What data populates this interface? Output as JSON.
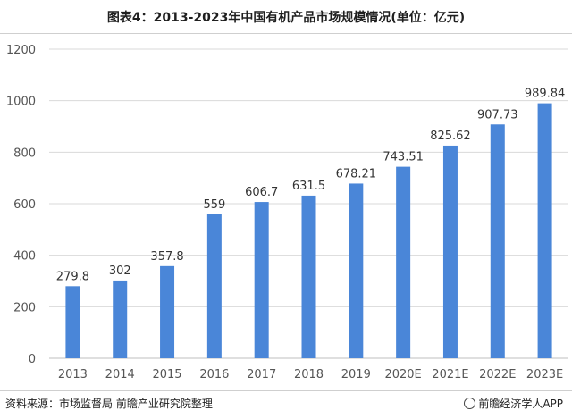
{
  "header": {
    "title": "图表4：2013-2023年中国有机产品市场规模情况(单位：亿元)"
  },
  "footer": {
    "source": "资料来源：市场监督局 前瞻产业研究院整理",
    "brand": "前瞻经济学人APP"
  },
  "colors": {
    "bar": "#4a86d8",
    "grid": "#d9d9d9",
    "axis": "#bfbfbf"
  },
  "chart_data": {
    "type": "bar",
    "title": "图表4：2013-2023年中国有机产品市场规模情况(单位：亿元)",
    "categories": [
      "2013",
      "2014",
      "2015",
      "2016",
      "2017",
      "2018",
      "2019",
      "2020E",
      "2021E",
      "2022E",
      "2023E"
    ],
    "values": [
      279.8,
      302,
      357.8,
      559,
      606.7,
      631.5,
      678.21,
      743.51,
      825.62,
      907.73,
      989.84
    ],
    "value_labels": [
      "279.8",
      "302",
      "357.8",
      "559",
      "606.7",
      "631.5",
      "678.21",
      "743.51",
      "825.62",
      "907.73",
      "989.84"
    ],
    "ylim": [
      0,
      1200
    ],
    "yticks": [
      0,
      200,
      400,
      600,
      800,
      1000,
      1200
    ],
    "grid": true,
    "xlabel": "",
    "ylabel": ""
  }
}
